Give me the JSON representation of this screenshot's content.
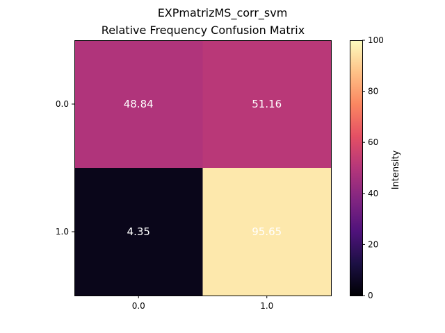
{
  "chart_data": {
    "type": "heatmap",
    "suptitle": "EXPmatrizMS_corr_svm",
    "title": "Relative Frequency Confusion Matrix",
    "x_tick_labels": [
      "0.0",
      "1.0"
    ],
    "y_tick_labels": [
      "0.0",
      "1.0"
    ],
    "values": [
      [
        48.84,
        51.16
      ],
      [
        4.35,
        95.65
      ]
    ],
    "value_labels": [
      [
        "48.84",
        "51.16"
      ],
      [
        "4.35",
        "95.65"
      ]
    ],
    "colorbar": {
      "label": "Intensity",
      "range": [
        0,
        100
      ],
      "ticks": [
        0,
        20,
        40,
        60,
        80,
        100
      ],
      "tick_labels": [
        "0",
        "20",
        "40",
        "60",
        "80",
        "100"
      ],
      "colormap": "magma"
    }
  }
}
